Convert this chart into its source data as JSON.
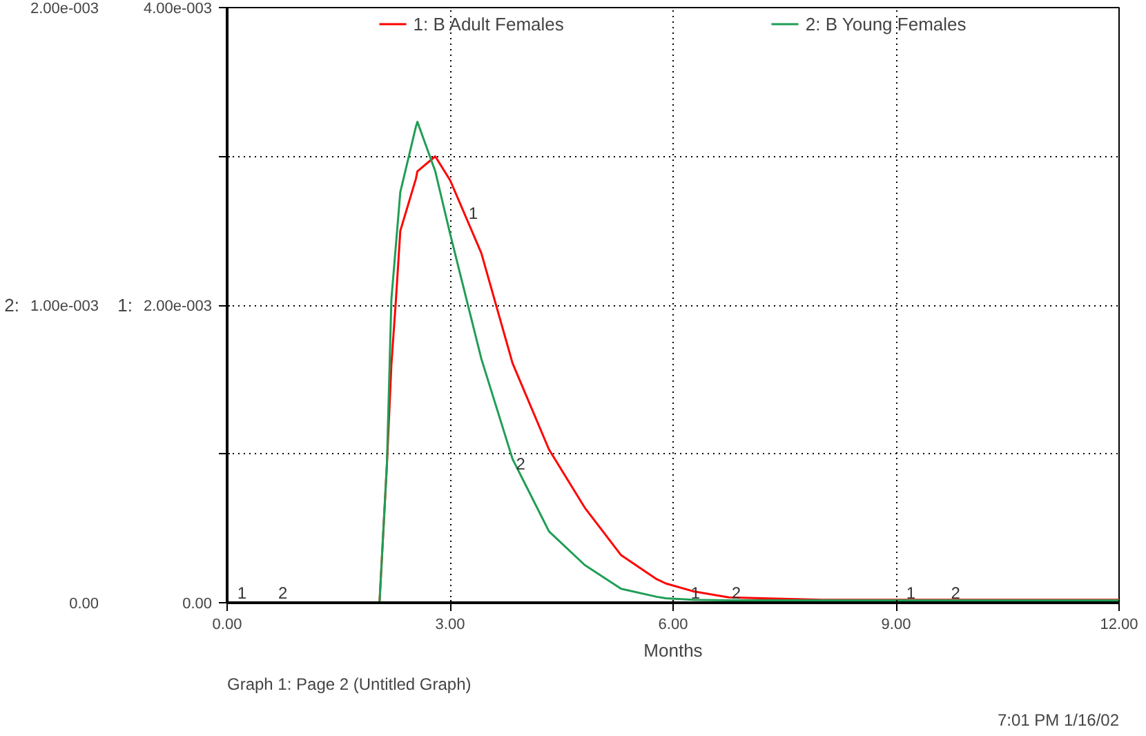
{
  "chart_data": {
    "type": "line",
    "xlabel": "Months",
    "ylabel": "1:",
    "y2label": "2:",
    "x": [
      0,
      2.05,
      2.15,
      2.21,
      2.27,
      2.33,
      2.54,
      2.56,
      2.8,
      3.0,
      3.42,
      3.84,
      4.33,
      4.81,
      5.3,
      5.78,
      5.9,
      6.27,
      6.75,
      8,
      10,
      12
    ],
    "series": [
      {
        "name": "1: B Adult Females",
        "color": "#ff0000",
        "values": [
          0,
          0,
          0.00093,
          0.0016,
          0.00203,
          0.0025,
          0.00285,
          0.0029,
          0.003,
          0.00284,
          0.00235,
          0.00161,
          0.00103,
          0.00064,
          0.00032,
          0.000158,
          0.00013,
          7.7e-05,
          3.6e-05,
          2e-05,
          2e-05,
          2e-05
        ]
      },
      {
        "name": "2: B Young Females",
        "color": "#1f9e55",
        "axis": "y2",
        "values": [
          0,
          0,
          0.00047,
          0.00102,
          0.0012,
          0.00138,
          0.0016,
          0.001616,
          0.00145,
          0.00124,
          0.00082,
          0.000483,
          0.00024,
          0.000127,
          4.7e-05,
          2e-05,
          1.5e-05,
          1e-05,
          8e-06,
          8e-06,
          8e-06,
          8e-06
        ]
      }
    ],
    "xlim": [
      0,
      12
    ],
    "xticks": [
      {
        "value": 0,
        "label": "0.00"
      },
      {
        "value": 3,
        "label": "3.00"
      },
      {
        "value": 6,
        "label": "6.00"
      },
      {
        "value": 9,
        "label": "9.00"
      },
      {
        "value": 12,
        "label": "12.00"
      }
    ],
    "ylim": [
      0,
      0.004
    ],
    "yticks": [
      {
        "value": 0,
        "label": "0.00"
      },
      {
        "value": 0.001,
        "label": null
      },
      {
        "value": 0.002,
        "label": "2.00e-003"
      },
      {
        "value": 0.003,
        "label": null
      },
      {
        "value": 0.004,
        "label": "4.00e-003"
      }
    ],
    "y2lim": [
      0,
      0.002
    ],
    "y2ticks": [
      {
        "value": 0,
        "label": "0.00"
      },
      {
        "value": 0.001,
        "label": "1.00e-003"
      },
      {
        "value": 0.002,
        "label": "2.00e-003"
      }
    ],
    "grid": true,
    "legend": "top",
    "marker": "none",
    "line_style": "solid",
    "annotations": [
      {
        "text": "1",
        "x": 3.31,
        "y": 0.00255
      },
      {
        "text": "2",
        "x": 3.95,
        "y": 0.00087
      },
      {
        "text": "1",
        "x": 0.2,
        "y": 0
      },
      {
        "text": "2",
        "x": 0.75,
        "y": 0
      },
      {
        "text": "1",
        "x": 6.3,
        "y": 0
      },
      {
        "text": "2",
        "x": 6.85,
        "y": 0
      },
      {
        "text": "1",
        "x": 9.2,
        "y": 0
      },
      {
        "text": "2",
        "x": 9.8,
        "y": 0
      },
      "Graph 1: Page 2 (Untitled Graph)",
      "7:01 PM 1/16/02"
    ]
  }
}
